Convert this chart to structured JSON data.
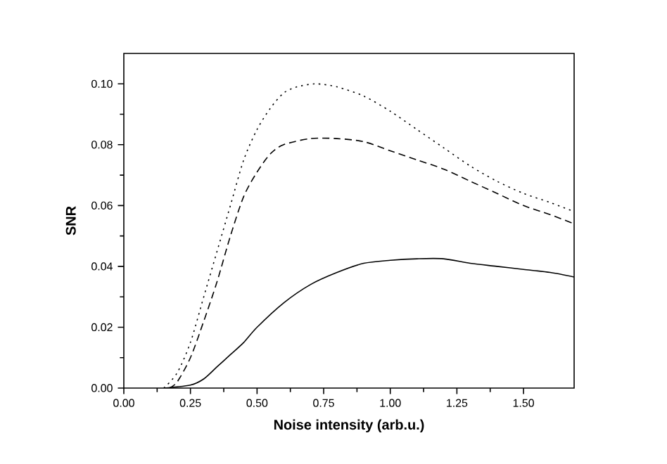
{
  "chart_data": {
    "type": "line",
    "xlabel": "Noise intensity (arb.u.)",
    "ylabel": "SNR",
    "xlim": [
      0,
      1.69
    ],
    "ylim": [
      0,
      0.11
    ],
    "xticks": [
      {
        "value": 0,
        "label": "0.00"
      },
      0.25,
      {
        "value": 0.5,
        "label": "0.50"
      },
      0.75,
      {
        "value": 1,
        "label": "1.00"
      },
      1.25,
      {
        "value": 1.5,
        "label": "1.50"
      }
    ],
    "yticks": [
      {
        "value": 0,
        "label": "0.00"
      },
      0.02,
      0.04,
      0.06,
      0.08,
      {
        "value": 0.1,
        "label": "0.10"
      }
    ],
    "series": [
      {
        "color": "#000000",
        "line_style": "solid",
        "x": [
          0.15,
          0.25,
          0.3,
          0.35,
          0.4,
          0.45,
          0.5,
          0.6,
          0.7,
          0.8,
          0.9,
          1.0,
          1.1,
          1.2,
          1.3,
          1.4,
          1.5,
          1.6,
          1.69
        ],
        "values": [
          0,
          0.001,
          0.003,
          0.007,
          0.011,
          0.015,
          0.02,
          0.028,
          0.034,
          0.038,
          0.041,
          0.042,
          0.0425,
          0.0425,
          0.041,
          0.04,
          0.039,
          0.038,
          0.0365
        ]
      },
      {
        "color": "#000000",
        "line_style": "dashed",
        "x": [
          0.17,
          0.2,
          0.25,
          0.3,
          0.35,
          0.4,
          0.45,
          0.5,
          0.55,
          0.6,
          0.7,
          0.8,
          0.9,
          1.0,
          1.1,
          1.2,
          1.3,
          1.4,
          1.5,
          1.6,
          1.69
        ],
        "values": [
          0,
          0.002,
          0.01,
          0.022,
          0.035,
          0.05,
          0.063,
          0.071,
          0.077,
          0.08,
          0.082,
          0.082,
          0.081,
          0.078,
          0.075,
          0.072,
          0.068,
          0.064,
          0.06,
          0.057,
          0.054
        ]
      },
      {
        "color": "#000000",
        "line_style": "dotted",
        "x": [
          0.15,
          0.2,
          0.25,
          0.3,
          0.35,
          0.4,
          0.45,
          0.5,
          0.55,
          0.6,
          0.65,
          0.72,
          0.8,
          0.9,
          1.0,
          1.1,
          1.2,
          1.3,
          1.4,
          1.5,
          1.6,
          1.69
        ],
        "values": [
          0,
          0.005,
          0.015,
          0.03,
          0.045,
          0.06,
          0.075,
          0.085,
          0.092,
          0.097,
          0.099,
          0.1,
          0.099,
          0.096,
          0.091,
          0.085,
          0.079,
          0.073,
          0.068,
          0.064,
          0.061,
          0.058
        ]
      }
    ]
  }
}
